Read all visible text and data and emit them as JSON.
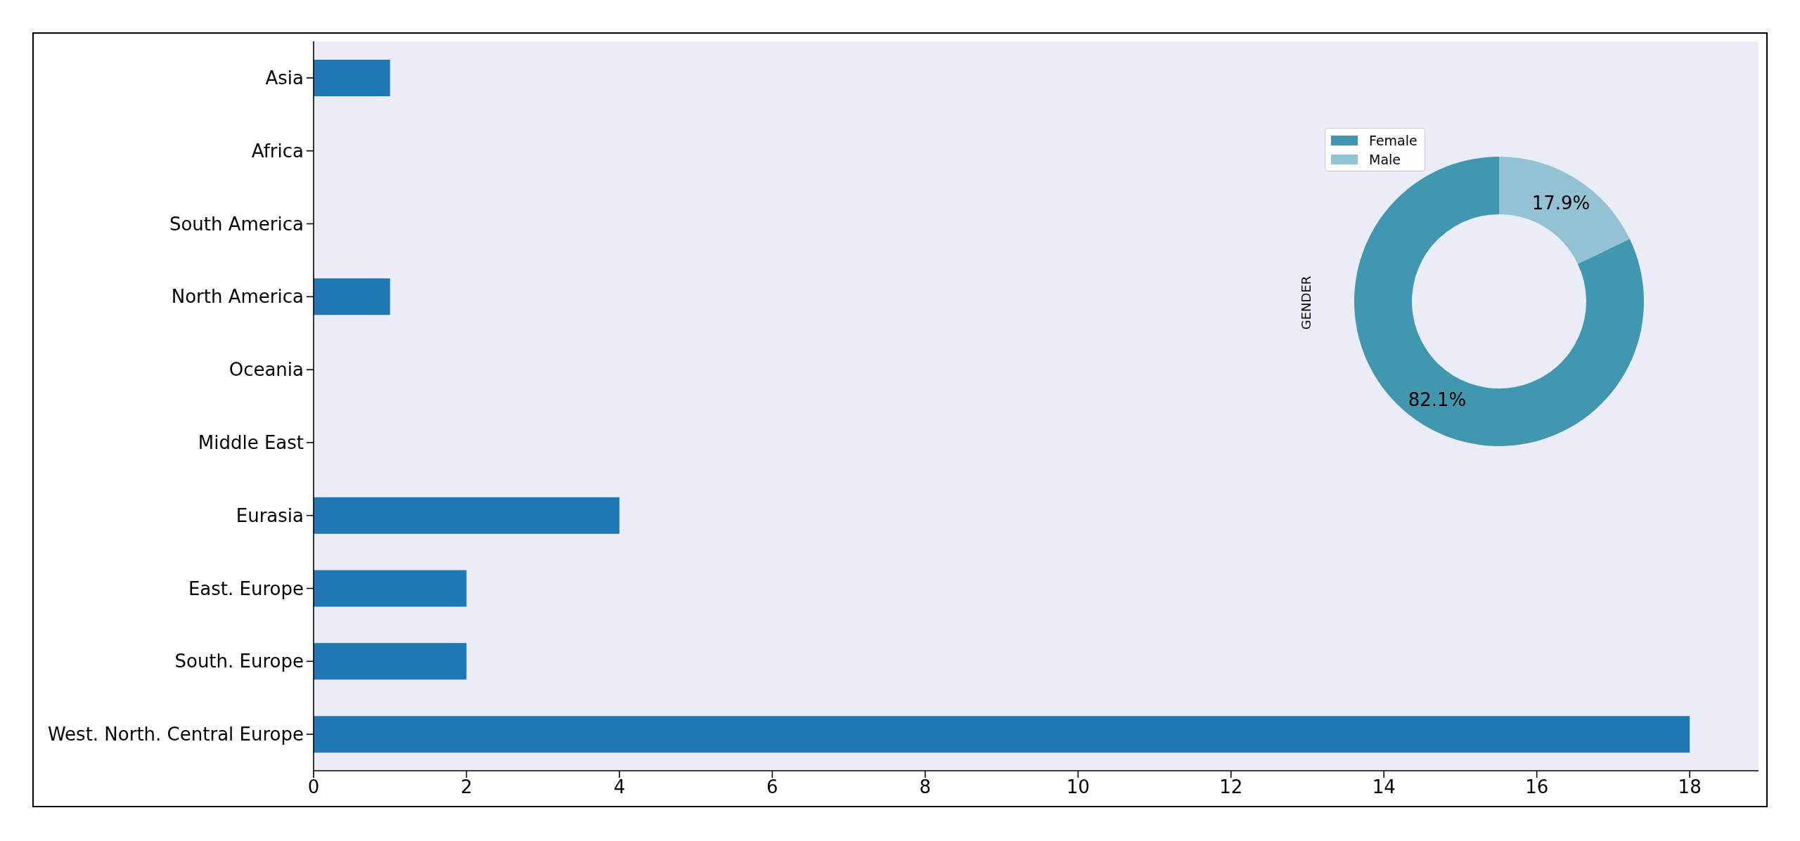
{
  "chart_data": [
    {
      "type": "bar",
      "orientation": "horizontal",
      "categories": [
        "Asia",
        "Africa",
        "South America",
        "North America",
        "Oceania",
        "Middle East",
        "Eurasia",
        "East. Europe",
        "South. Europe",
        "West. North. Central Europe"
      ],
      "values": [
        1,
        0,
        0,
        1,
        0,
        0,
        4,
        2,
        2,
        18
      ],
      "color": "#1f77b4",
      "xlim": [
        0,
        18.9
      ],
      "xticks": [
        0,
        2,
        4,
        6,
        8,
        10,
        12,
        14,
        16,
        18
      ]
    },
    {
      "type": "donut",
      "ylabel": "GENDER",
      "categories": [
        "Female",
        "Male"
      ],
      "values": [
        82.1,
        17.9
      ],
      "colors": [
        "#4297b0",
        "#93c2d5"
      ],
      "value_labels": [
        "82.1%",
        "17.9%"
      ],
      "legend": "top left"
    }
  ]
}
